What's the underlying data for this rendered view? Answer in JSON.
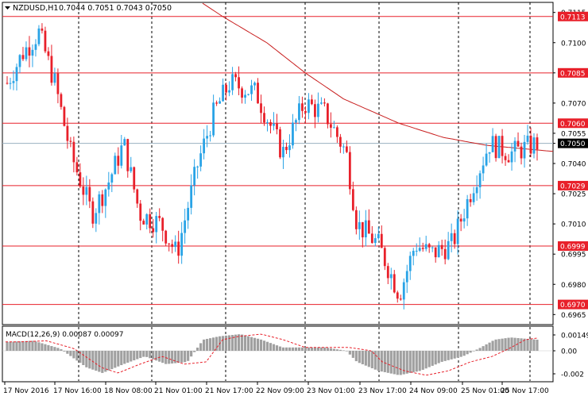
{
  "header": {
    "symbol_label": "NZDUSD,H1",
    "ohlc_text": "0.7044 0.7051 0.7043 0.7050"
  },
  "macd": {
    "label": "MACD(12,26,9) 0.00087 0.00097",
    "y_ticks": [
      "0.00149",
      "0.00",
      "-0.002"
    ]
  },
  "colors": {
    "bull": "#29a3e6",
    "bear": "#e8202a",
    "level_line": "#e8202a",
    "ma_line": "#c81e1e",
    "bid_line": "#9ab0c0",
    "macd_hist": "#a0a0a0",
    "signal": "#e8202a",
    "grid": "#000000"
  },
  "chart_data": {
    "type": "candlestick",
    "price_ticks": [
      "0.7115",
      "0.7100",
      "0.7085",
      "0.7070",
      "0.7055",
      "0.7050",
      "0.7040",
      "0.7025",
      "0.7010",
      "0.6995",
      "0.6980",
      "0.6965"
    ],
    "levels": [
      {
        "price": 0.7113,
        "label": "0.7113"
      },
      {
        "price": 0.7085,
        "label": "0.7085"
      },
      {
        "price": 0.706,
        "label": "0.7060"
      },
      {
        "price": 0.7029,
        "label": "0.7029"
      },
      {
        "price": 0.6999,
        "label": "0.6999"
      },
      {
        "price": 0.697,
        "label": "0.6970"
      }
    ],
    "current_price": {
      "price": 0.705,
      "label": "0.7050"
    },
    "x_labels": [
      "17 Nov 2016",
      "17 Nov 16:00",
      "18 Nov 08:00",
      "21 Nov 01:00",
      "21 Nov 17:00",
      "22 Nov 09:00",
      "23 Nov 01:00",
      "23 Nov 17:00",
      "24 Nov 09:00",
      "25 Nov 01:00",
      "25 Nov 17:00"
    ],
    "y_range": [
      0.696,
      0.712
    ],
    "ma_waypoints": [
      [
        0.25,
        0.714
      ],
      [
        0.4,
        0.7113
      ],
      [
        0.48,
        0.71
      ],
      [
        0.55,
        0.7085
      ],
      [
        0.62,
        0.7072
      ],
      [
        0.72,
        0.706
      ],
      [
        0.8,
        0.7053
      ],
      [
        0.88,
        0.7049
      ],
      [
        1.0,
        0.7046
      ]
    ],
    "price_waypoints": [
      [
        0,
        0.708
      ],
      [
        0.03,
        0.7095
      ],
      [
        0.06,
        0.7105
      ],
      [
        0.09,
        0.708
      ],
      [
        0.12,
        0.7045
      ],
      [
        0.16,
        0.7015
      ],
      [
        0.19,
        0.703
      ],
      [
        0.22,
        0.705
      ],
      [
        0.25,
        0.7015
      ],
      [
        0.29,
        0.701
      ],
      [
        0.32,
        0.6995
      ],
      [
        0.36,
        0.704
      ],
      [
        0.39,
        0.7065
      ],
      [
        0.42,
        0.708
      ],
      [
        0.47,
        0.7075
      ],
      [
        0.52,
        0.7045
      ],
      [
        0.56,
        0.707
      ],
      [
        0.6,
        0.7065
      ],
      [
        0.64,
        0.7045
      ],
      [
        0.66,
        0.701
      ],
      [
        0.7,
        0.7
      ],
      [
        0.74,
        0.6975
      ],
      [
        0.77,
        0.7
      ],
      [
        0.8,
        0.6995
      ],
      [
        0.84,
        0.7
      ],
      [
        0.88,
        0.703
      ],
      [
        0.91,
        0.705
      ],
      [
        0.95,
        0.7045
      ],
      [
        1.0,
        0.705
      ]
    ],
    "macd_waypoints": [
      [
        0,
        0.0008
      ],
      [
        0.05,
        0.0009
      ],
      [
        0.1,
        0.0002
      ],
      [
        0.15,
        -0.0015
      ],
      [
        0.18,
        -0.002
      ],
      [
        0.22,
        -0.0012
      ],
      [
        0.26,
        -0.0005
      ],
      [
        0.3,
        -0.0012
      ],
      [
        0.34,
        -0.001
      ],
      [
        0.37,
        0.001
      ],
      [
        0.4,
        0.0013
      ],
      [
        0.44,
        0.0015
      ],
      [
        0.48,
        0.001
      ],
      [
        0.52,
        0.0003
      ],
      [
        0.56,
        0.0003
      ],
      [
        0.6,
        0.0003
      ],
      [
        0.64,
        0.0
      ],
      [
        0.66,
        -0.001
      ],
      [
        0.7,
        -0.0018
      ],
      [
        0.74,
        -0.0022
      ],
      [
        0.78,
        -0.0018
      ],
      [
        0.82,
        -0.001
      ],
      [
        0.86,
        -0.0005
      ],
      [
        0.89,
        0.0002
      ],
      [
        0.92,
        0.001
      ],
      [
        0.95,
        0.0012
      ],
      [
        1.0,
        0.001
      ]
    ]
  }
}
